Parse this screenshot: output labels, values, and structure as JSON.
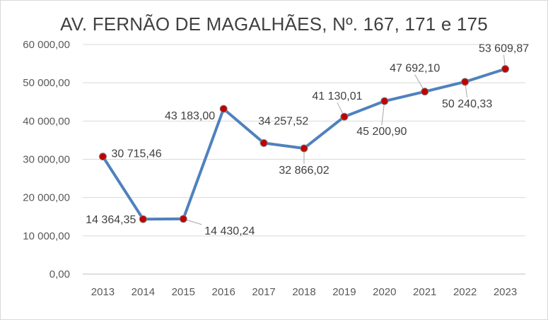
{
  "chart_data": {
    "type": "line",
    "title": "AV. FERNÃO DE MAGALHÃES, Nº. 167, 171 e 175",
    "xlabel": "",
    "ylabel": "",
    "categories": [
      "2013",
      "2014",
      "2015",
      "2016",
      "2017",
      "2018",
      "2019",
      "2020",
      "2021",
      "2022",
      "2023"
    ],
    "values": [
      30715.46,
      14364.35,
      14430.24,
      43183.0,
      34257.52,
      32866.02,
      41130.01,
      45200.9,
      47692.1,
      50240.33,
      53609.87
    ],
    "data_labels": [
      "30 715,46",
      "14 364,35",
      "14 430,24",
      "43 183,00",
      "34 257,52",
      "32 866,02",
      "41 130,01",
      "45 200,90",
      "47 692,10",
      "50 240,33",
      "53 609,87"
    ],
    "y_ticks": [
      "0,00",
      "10 000,00",
      "20 000,00",
      "30 000,00",
      "40 000,00",
      "50 000,00",
      "60 000,00"
    ],
    "ylim": [
      0,
      60000
    ],
    "grid": true,
    "legend": "none",
    "colors": {
      "line": "#4f81bd",
      "marker": "#c00000",
      "grid": "#d9d9d9",
      "leader": "#a6a6a6"
    }
  }
}
